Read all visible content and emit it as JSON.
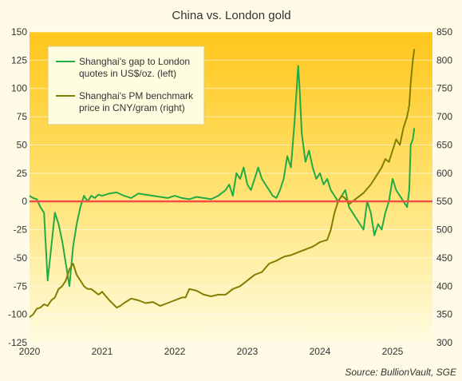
{
  "chart_data": {
    "type": "line",
    "title": "China vs. London gold",
    "source": "Source: BullionVault, SGE",
    "zero_line_color": "#f0504a",
    "x_axis": {
      "min": 2020.0,
      "max": 2025.55,
      "ticks": [
        "2020",
        "2021",
        "2022",
        "2023",
        "2024",
        "2025"
      ]
    },
    "y_left": {
      "min": -125,
      "max": 150,
      "step": 25,
      "ticks": [
        "150",
        "125",
        "100",
        "75",
        "50",
        "25",
        "0",
        "-25",
        "-50",
        "-75",
        "-100",
        "-125"
      ]
    },
    "y_right": {
      "min": 300,
      "max": 850,
      "step": 50,
      "ticks": [
        "850",
        "800",
        "750",
        "700",
        "650",
        "600",
        "550",
        "500",
        "450",
        "400",
        "350",
        "300"
      ]
    },
    "legend": {
      "position": "top-left",
      "entries": [
        "Shanghai's gap to London quotes in US$/oz. (left)",
        "Shanghai's PM benchmark price in CNY/gram (right)"
      ]
    },
    "series": [
      {
        "name": "Shanghai's gap to London quotes in US$/oz. (left)",
        "axis": "left",
        "color": "#22aa44",
        "x": [
          2020.0,
          2020.05,
          2020.1,
          2020.15,
          2020.2,
          2020.25,
          2020.3,
          2020.35,
          2020.4,
          2020.45,
          2020.5,
          2020.55,
          2020.6,
          2020.65,
          2020.7,
          2020.75,
          2020.8,
          2020.85,
          2020.9,
          2020.95,
          2021.0,
          2021.1,
          2021.2,
          2021.3,
          2021.4,
          2021.45,
          2021.5,
          2021.6,
          2021.7,
          2021.8,
          2021.9,
          2022.0,
          2022.1,
          2022.2,
          2022.3,
          2022.4,
          2022.5,
          2022.6,
          2022.7,
          2022.75,
          2022.8,
          2022.85,
          2022.9,
          2022.95,
          2023.0,
          2023.05,
          2023.1,
          2023.15,
          2023.2,
          2023.25,
          2023.3,
          2023.35,
          2023.4,
          2023.45,
          2023.5,
          2023.55,
          2023.6,
          2023.65,
          2023.7,
          2023.72,
          2023.75,
          2023.8,
          2023.85,
          2023.9,
          2023.95,
          2024.0,
          2024.05,
          2024.1,
          2024.15,
          2024.2,
          2024.25,
          2024.3,
          2024.35,
          2024.4,
          2024.45,
          2024.5,
          2024.55,
          2024.6,
          2024.65,
          2024.7,
          2024.75,
          2024.8,
          2024.85,
          2024.9,
          2024.95,
          2025.0,
          2025.05,
          2025.1,
          2025.15,
          2025.2,
          2025.23,
          2025.25,
          2025.28,
          2025.3
        ],
        "values": [
          5,
          3,
          2,
          -5,
          -10,
          -70,
          -40,
          -10,
          -20,
          -35,
          -55,
          -75,
          -40,
          -20,
          -5,
          5,
          0,
          5,
          3,
          6,
          5,
          7,
          8,
          5,
          3,
          5,
          7,
          6,
          5,
          4,
          3,
          5,
          3,
          2,
          4,
          3,
          2,
          5,
          10,
          15,
          5,
          25,
          20,
          30,
          15,
          10,
          20,
          30,
          20,
          15,
          10,
          5,
          3,
          10,
          20,
          40,
          30,
          70,
          120,
          100,
          60,
          35,
          45,
          30,
          20,
          25,
          15,
          20,
          10,
          5,
          0,
          5,
          10,
          -5,
          -10,
          -15,
          -20,
          -25,
          0,
          -10,
          -30,
          -20,
          -25,
          -10,
          0,
          20,
          10,
          5,
          0,
          -5,
          10,
          50,
          55,
          65
        ]
      },
      {
        "name": "Shanghai's PM benchmark price in CNY/gram (right)",
        "axis": "right",
        "color": "#808000",
        "x": [
          2020.0,
          2020.05,
          2020.1,
          2020.15,
          2020.2,
          2020.25,
          2020.3,
          2020.35,
          2020.4,
          2020.45,
          2020.5,
          2020.55,
          2020.6,
          2020.65,
          2020.7,
          2020.75,
          2020.8,
          2020.85,
          2020.9,
          2020.95,
          2021.0,
          2021.1,
          2021.2,
          2021.25,
          2021.3,
          2021.4,
          2021.5,
          2021.6,
          2021.7,
          2021.8,
          2021.9,
          2022.0,
          2022.1,
          2022.15,
          2022.2,
          2022.3,
          2022.4,
          2022.5,
          2022.6,
          2022.7,
          2022.8,
          2022.9,
          2023.0,
          2023.1,
          2023.2,
          2023.3,
          2023.4,
          2023.5,
          2023.6,
          2023.7,
          2023.8,
          2023.9,
          2024.0,
          2024.1,
          2024.15,
          2024.2,
          2024.25,
          2024.3,
          2024.35,
          2024.4,
          2024.5,
          2024.6,
          2024.7,
          2024.8,
          2024.85,
          2024.9,
          2024.95,
          2025.0,
          2025.05,
          2025.1,
          2025.15,
          2025.2,
          2025.23,
          2025.25,
          2025.28,
          2025.3
        ],
        "values": [
          345,
          350,
          360,
          362,
          368,
          365,
          375,
          380,
          395,
          400,
          410,
          430,
          440,
          420,
          410,
          400,
          395,
          395,
          390,
          385,
          390,
          375,
          362,
          365,
          370,
          378,
          375,
          370,
          372,
          365,
          370,
          375,
          380,
          380,
          395,
          392,
          385,
          382,
          385,
          385,
          395,
          400,
          410,
          420,
          425,
          440,
          445,
          452,
          455,
          460,
          465,
          470,
          478,
          482,
          500,
          530,
          550,
          560,
          555,
          545,
          555,
          565,
          580,
          600,
          610,
          625,
          620,
          640,
          660,
          650,
          680,
          700,
          720,
          760,
          800,
          820
        ]
      }
    ]
  }
}
